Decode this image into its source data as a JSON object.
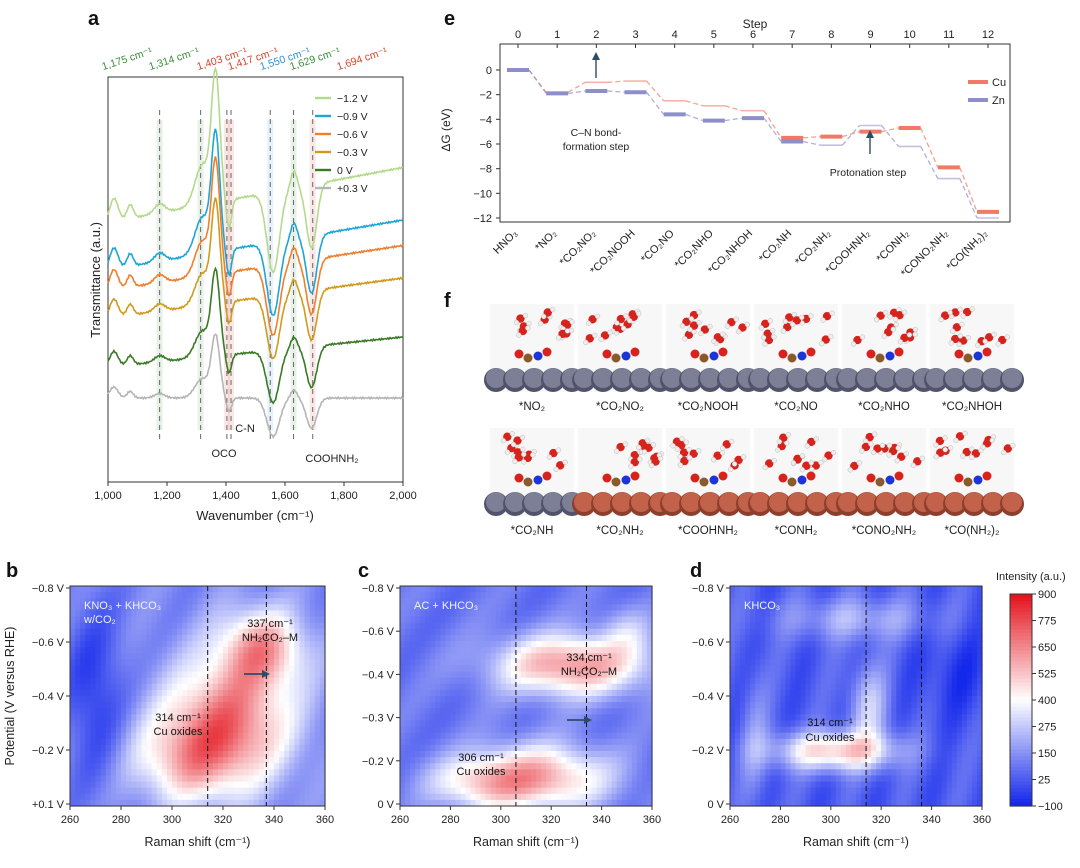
{
  "panel_labels": {
    "a": "a",
    "b": "b",
    "c": "c",
    "d": "d",
    "e": "e",
    "f": "f"
  },
  "colors": {
    "green": "#3a8f3a",
    "red": "#d9452f",
    "blue": "#2e8fd6",
    "cu": "#f07a66",
    "zn": "#8e8ec8"
  },
  "chart_data": [
    {
      "id": "a",
      "type": "line",
      "xlabel": "Wavenumber (cm⁻¹)",
      "ylabel": "Transmittance (a.u.)",
      "xlim": [
        1000,
        2000
      ],
      "xticks": [
        "1,000",
        "1,200",
        "1,400",
        "1,600",
        "1,800",
        "2,000"
      ],
      "series": [
        {
          "name": "−1.2 V",
          "color": "#b5d98c"
        },
        {
          "name": "−0.9 V",
          "color": "#1fa5d6"
        },
        {
          "name": "−0.6 V",
          "color": "#f07f2b"
        },
        {
          "name": "−0.3 V",
          "color": "#cf9a1e"
        },
        {
          "name": "0 V",
          "color": "#3a7a25"
        },
        {
          "name": "+0.3 V",
          "color": "#b5b5b5"
        }
      ],
      "peak_labels": [
        {
          "text": "1,175 cm⁻¹",
          "x": 1175,
          "color": "green"
        },
        {
          "text": "1,314 cm⁻¹",
          "x": 1314,
          "color": "green"
        },
        {
          "text": "1,403 cm⁻¹",
          "x": 1403,
          "color": "red"
        },
        {
          "text": "1,417 cm⁻¹",
          "x": 1417,
          "color": "red"
        },
        {
          "text": "1,550 cm⁻¹",
          "x": 1550,
          "color": "blue"
        },
        {
          "text": "1,629 cm⁻¹",
          "x": 1629,
          "color": "green"
        },
        {
          "text": "1,694 cm⁻¹",
          "x": 1694,
          "color": "red"
        }
      ],
      "annotations": [
        "OCO",
        "C-N",
        "COOHNH₂"
      ]
    },
    {
      "id": "e",
      "type": "line",
      "title": "Step",
      "ylabel": "ΔG (eV)",
      "ylim": [
        -12,
        0
      ],
      "yticks": [
        "0",
        "−2",
        "−4",
        "−6",
        "−8",
        "−10",
        "−12"
      ],
      "steps": [
        0,
        1,
        2,
        3,
        4,
        5,
        6,
        7,
        8,
        9,
        10,
        11,
        12
      ],
      "categories": [
        "HNO₃",
        "*NO₂",
        "*CO₂NO₂",
        "*CO₂NOOH",
        "*CO₂NO",
        "*CO₂NHO",
        "*CO₂NHOH",
        "*CO₂NH",
        "*CO₂NH₂",
        "*COOHNH₂",
        "*CONH₂",
        "*CONO₂NH₂",
        "*CO(NH₂)₂"
      ],
      "series": [
        {
          "name": "Cu",
          "values": [
            0,
            -1.8,
            -1.0,
            -0.9,
            -2.5,
            -2.9,
            -3.3,
            -5.5,
            -5.4,
            -5.0,
            -4.7,
            -7.9,
            -11.5
          ]
        },
        {
          "name": "Zn",
          "values": [
            0,
            -1.9,
            -1.7,
            -1.8,
            -3.6,
            -4.1,
            -3.9,
            -5.8,
            -6.1,
            -4.5,
            -6.2,
            -8.8,
            -12.0
          ]
        }
      ],
      "annotations": [
        "C–N bond-",
        "formation step",
        "Protonation step"
      ]
    },
    {
      "id": "b",
      "type": "heatmap",
      "xlabel": "Raman shift (cm⁻¹)",
      "ylabel": "Potential (V versus RHE)",
      "xlim": [
        260,
        360
      ],
      "xticks": [
        "260",
        "280",
        "300",
        "320",
        "340",
        "360"
      ],
      "yticks": [
        "−0.8 V",
        "−0.6 V",
        "−0.4 V",
        "−0.2 V",
        "+0.1 V"
      ],
      "labels": [
        "KNO₃ + KHCO₃",
        "w/CO₂",
        "337 cm⁻¹",
        "NH₂CO₂–M",
        "314 cm⁻¹",
        "Cu oxides"
      ],
      "dashed_lines": [
        314,
        337
      ]
    },
    {
      "id": "c",
      "type": "heatmap",
      "xlabel": "Raman shift (cm⁻¹)",
      "xlim": [
        260,
        360
      ],
      "xticks": [
        "260",
        "280",
        "300",
        "320",
        "340",
        "360"
      ],
      "yticks": [
        "−0.8 V",
        "−0.6 V",
        "−0.4 V",
        "−0.3 V",
        "−0.2 V",
        "0 V"
      ],
      "labels": [
        "AC + KHCO₃",
        "334 cm⁻¹",
        "NH₂CO₂–M",
        "306 cm⁻¹",
        "Cu oxides"
      ],
      "dashed_lines": [
        306,
        334
      ]
    },
    {
      "id": "d",
      "type": "heatmap",
      "xlabel": "Raman shift (cm⁻¹)",
      "xlim": [
        260,
        360
      ],
      "xticks": [
        "260",
        "280",
        "300",
        "320",
        "340",
        "360"
      ],
      "yticks": [
        "−0.8 V",
        "−0.6 V",
        "−0.4 V",
        "−0.2 V",
        "0 V"
      ],
      "labels": [
        "KHCO₃",
        "314 cm⁻¹",
        "Cu oxides"
      ],
      "dashed_lines": [
        314,
        336
      ],
      "colorbar": {
        "title": "Intensity (a.u.)",
        "ticks": [
          "900",
          "775",
          "650",
          "525",
          "400",
          "275",
          "150",
          "25",
          "−100"
        ]
      }
    }
  ],
  "panel_f": {
    "row1": [
      "*NO₂",
      "*CO₂NO₂",
      "*CO₂NOOH",
      "*CO₂NO",
      "*CO₂NHO",
      "*CO₂NHOH"
    ],
    "row2": [
      "*CO₂NH",
      "*CO₂NH₂",
      "*COOHNH₂",
      "*CONH₂",
      "*CONO₂NH₂",
      "*CO(NH₂)₂"
    ]
  }
}
